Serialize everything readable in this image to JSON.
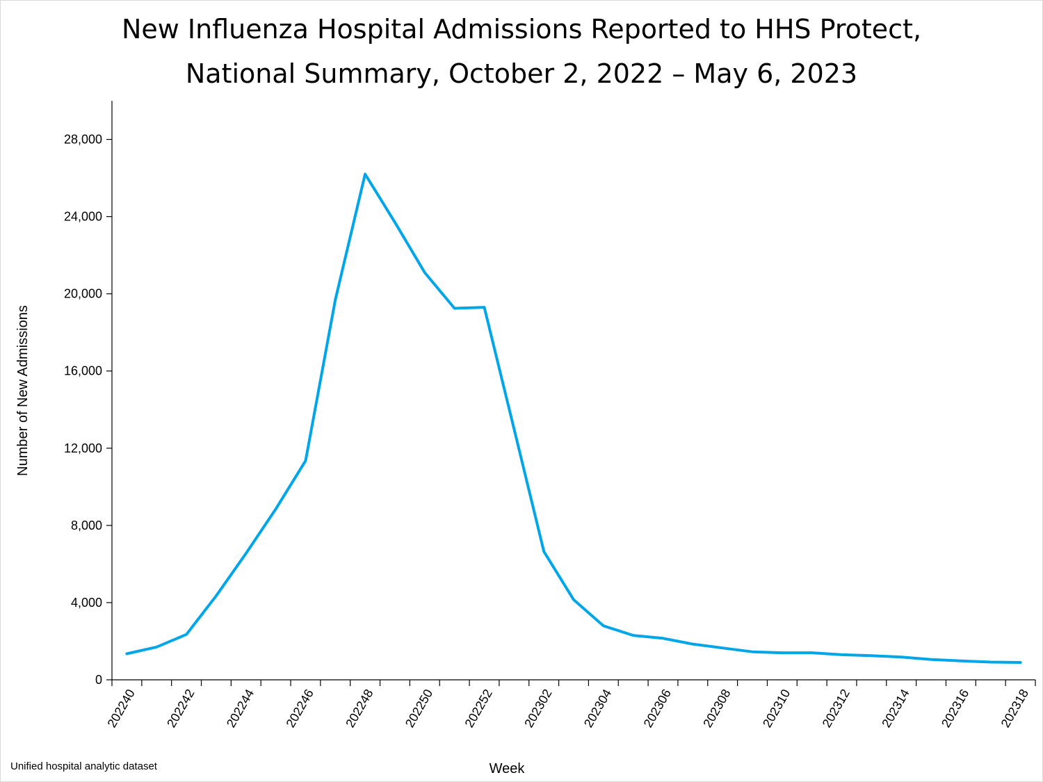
{
  "chart_data": {
    "type": "line",
    "title_lines": [
      "New Influenza Hospital Admissions Reported to HHS Protect,",
      "National Summary, October 2, 2022 – May 6, 2023"
    ],
    "xlabel": "Week",
    "ylabel": "Number of New Admissions",
    "ylim": [
      0,
      30000
    ],
    "yticks": [
      0,
      4000,
      8000,
      12000,
      16000,
      20000,
      24000,
      28000
    ],
    "ytick_labels": [
      "0",
      "4,000",
      "8,000",
      "12,000",
      "16,000",
      "20,000",
      "24,000",
      "28,000"
    ],
    "xtick_labels": [
      "202240",
      "202242",
      "202244",
      "202246",
      "202248",
      "202250",
      "202252",
      "202302",
      "202304",
      "202306",
      "202308",
      "202310",
      "202312",
      "202314",
      "202316",
      "202318"
    ],
    "x": [
      "202240",
      "202241",
      "202242",
      "202243",
      "202244",
      "202245",
      "202246",
      "202247",
      "202248",
      "202249",
      "202250",
      "202251",
      "202252",
      "202301",
      "202302",
      "202303",
      "202304",
      "202305",
      "202306",
      "202307",
      "202308",
      "202309",
      "202310",
      "202311",
      "202312",
      "202313",
      "202314",
      "202315",
      "202316",
      "202317",
      "202318"
    ],
    "series": [
      {
        "color": "#00a6e8",
        "values": [
          1350,
          1700,
          2350,
          4350,
          6550,
          8850,
          11350,
          19700,
          26200,
          23700,
          21100,
          19250,
          19300,
          13000,
          6650,
          4150,
          2800,
          2300,
          2150,
          1850,
          1650,
          1450,
          1400,
          1400,
          1300,
          1250,
          1180,
          1050,
          980,
          920,
          900
        ]
      }
    ],
    "grid": false,
    "legend": "none"
  },
  "footer": {
    "source": "Unified hospital analytic dataset"
  }
}
